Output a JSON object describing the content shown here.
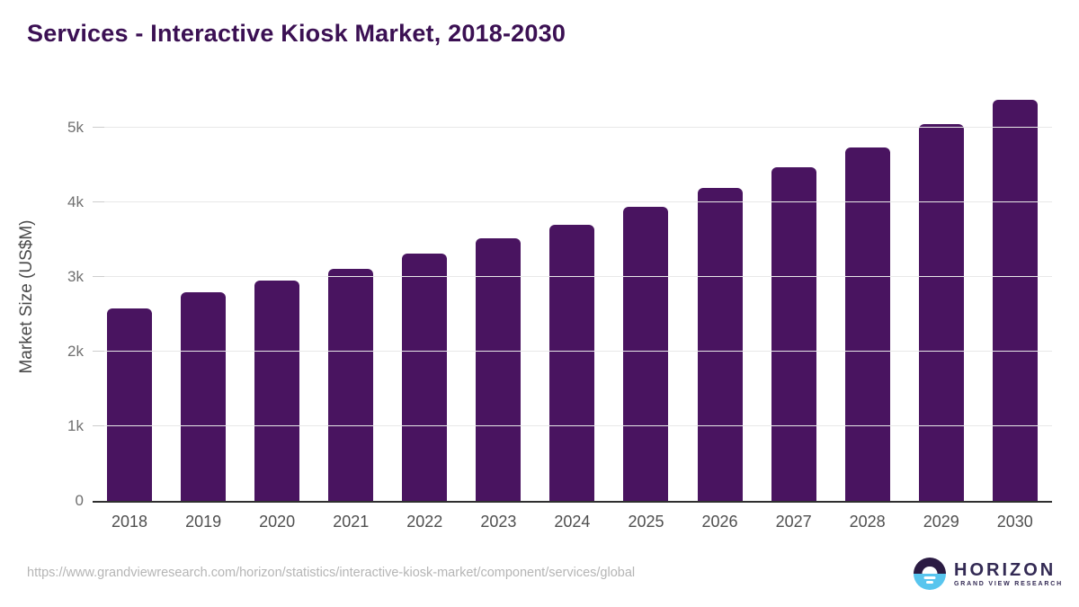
{
  "chart_data": {
    "type": "bar",
    "title": "Services - Interactive Kiosk Market, 2018-2030",
    "ylabel": "Market Size (US$M)",
    "xlabel": "",
    "categories": [
      "2018",
      "2019",
      "2020",
      "2021",
      "2022",
      "2023",
      "2024",
      "2025",
      "2026",
      "2027",
      "2028",
      "2029",
      "2030"
    ],
    "values": [
      2580,
      2790,
      2950,
      3110,
      3310,
      3520,
      3700,
      3940,
      4190,
      4460,
      4730,
      5040,
      5370
    ],
    "ylim": [
      0,
      5500
    ],
    "yticks": [
      {
        "value": 0,
        "label": "0"
      },
      {
        "value": 1000,
        "label": "1k"
      },
      {
        "value": 2000,
        "label": "2k"
      },
      {
        "value": 3000,
        "label": "3k"
      },
      {
        "value": 4000,
        "label": "4k"
      },
      {
        "value": 5000,
        "label": "5k"
      }
    ],
    "grid": true,
    "legend_position": "none",
    "bar_color": "#491460"
  },
  "colors": {
    "title": "#3b1053",
    "bar": "#491460",
    "gridline": "#e8e8e8",
    "axis_line": "#2f2f2f",
    "tick_label": "#6f6f6f",
    "x_label": "#4f4f4f",
    "url_text": "#b5b5b5",
    "logo_purple": "#2b1b43",
    "logo_blue": "#58c5ee",
    "brand_text": "#332a54"
  },
  "footer": {
    "source_url": "https://www.grandviewresearch.com/horizon/statistics/interactive-kiosk-market/component/services/global",
    "brand": "HORIZON",
    "brand_sub": "GRAND VIEW RESEARCH"
  }
}
